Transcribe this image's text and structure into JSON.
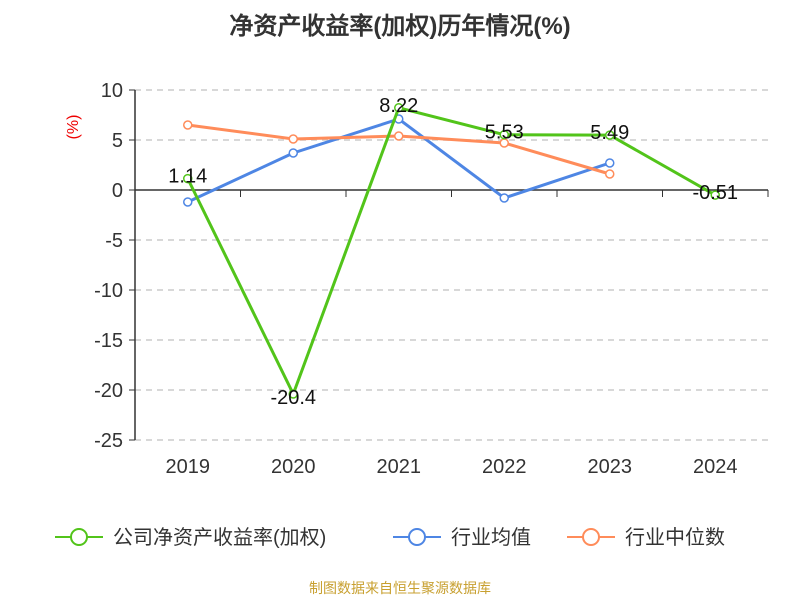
{
  "chart_data": {
    "type": "line",
    "title": "净资产收益率(加权)历年情况(%)",
    "ylabel": "(%)",
    "xlabel": "",
    "categories": [
      "2019",
      "2020",
      "2021",
      "2022",
      "2023",
      "2024"
    ],
    "ylim": [
      -25,
      10
    ],
    "yticks": [
      10,
      5,
      0,
      -5,
      -10,
      -15,
      -20,
      -25
    ],
    "grid": true,
    "legend_position": "bottom",
    "series": [
      {
        "name": "公司净资产收益率(加权)",
        "color": "#52c41a",
        "values": [
          1.14,
          -20.4,
          8.22,
          5.53,
          5.49,
          -0.51
        ],
        "labels": [
          "1.14",
          "-20.4",
          "8.22",
          "5.53",
          "5.49",
          "-0.51"
        ]
      },
      {
        "name": "行业均值",
        "color": "#4e86e4",
        "values": [
          -1.2,
          3.7,
          7.1,
          -0.8,
          2.7,
          null
        ]
      },
      {
        "name": "行业中位数",
        "color": "#ff8c5a",
        "values": [
          6.5,
          5.1,
          5.4,
          4.7,
          1.6,
          null
        ]
      }
    ]
  },
  "footer": "制图数据来自恒生聚源数据库"
}
